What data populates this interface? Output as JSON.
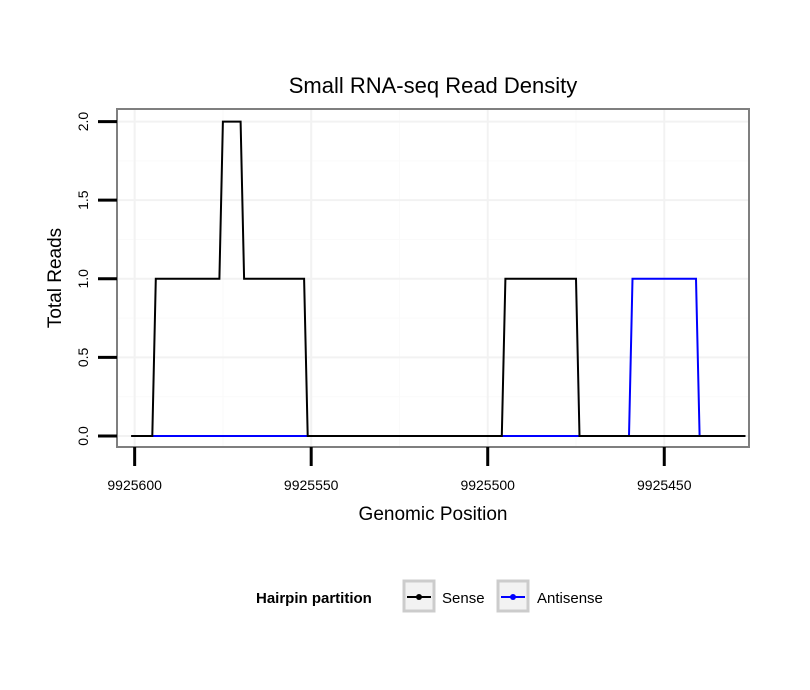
{
  "chart_data": {
    "type": "line",
    "title": "Small RNA-seq Read Density",
    "xlabel": "Genomic Position",
    "ylabel": "Total Reads",
    "x_reversed": true,
    "xlim": [
      9925605,
      9925426
    ],
    "ylim": [
      -0.07,
      2.08
    ],
    "x_ticks": [
      9925600,
      9925550,
      9925500,
      9925450
    ],
    "x_tick_labels": [
      "9925600",
      "9925550",
      "9925500",
      "9925450"
    ],
    "y_ticks": [
      0,
      0.5,
      1,
      1.5,
      2
    ],
    "y_tick_labels": [
      "0.0",
      "0.5",
      "1.0",
      "1.5",
      "2.0"
    ],
    "grid": true,
    "legend_title": "Hairpin partition",
    "legend_position": "bottom",
    "series": [
      {
        "name": "Sense",
        "color": "#000000",
        "x": [
          9925601,
          9925595,
          9925594,
          9925576,
          9925575,
          9925570,
          9925569,
          9925552,
          9925551,
          9925496,
          9925495,
          9925475,
          9925474,
          9925427
        ],
        "y": [
          0,
          0,
          1,
          1,
          2,
          2,
          1,
          1,
          0,
          0,
          1,
          1,
          0,
          0
        ]
      },
      {
        "name": "Antisense",
        "color": "#0000ff",
        "x": [
          9925595,
          9925460,
          9925459,
          9925441,
          9925440,
          9925432
        ],
        "y": [
          0,
          0,
          1,
          1,
          0,
          0
        ]
      }
    ]
  }
}
